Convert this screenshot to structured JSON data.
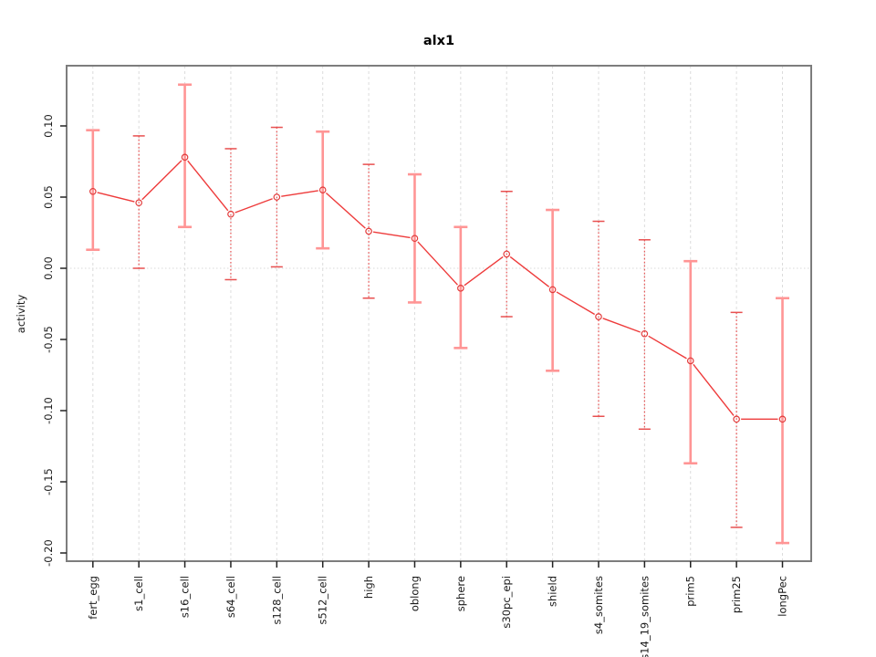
{
  "chart_data": {
    "type": "line",
    "title": "alx1",
    "xlabel": "",
    "ylabel": "activity",
    "legend": "none",
    "marker": "open-circle",
    "categories": [
      "fert_egg",
      "s1_cell",
      "s16_cell",
      "s64_cell",
      "s128_cell",
      "s512_cell",
      "high",
      "oblong",
      "sphere",
      "s30pc_epi",
      "shield",
      "s4_somites",
      "s14_19_somites",
      "prim5",
      "prim25",
      "longPec"
    ],
    "series": [
      {
        "name": "alx1 activity",
        "values": [
          0.054,
          0.046,
          0.078,
          0.038,
          0.05,
          0.055,
          0.026,
          0.021,
          -0.014,
          0.01,
          -0.015,
          -0.034,
          -0.046,
          -0.065,
          -0.106,
          -0.106
        ],
        "err_high": [
          0.097,
          0.093,
          0.129,
          0.084,
          0.099,
          0.096,
          0.073,
          0.066,
          0.029,
          0.054,
          0.041,
          0.033,
          0.02,
          0.005,
          -0.031,
          -0.021
        ],
        "err_low": [
          0.013,
          0.0,
          0.029,
          -0.008,
          0.001,
          0.014,
          -0.021,
          -0.024,
          -0.056,
          -0.034,
          -0.072,
          -0.104,
          -0.113,
          -0.137,
          -0.182,
          -0.193
        ]
      }
    ],
    "y_ticks": [
      0.1,
      0.05,
      0.0,
      -0.05,
      -0.1,
      -0.15,
      -0.2
    ],
    "ylim": [
      -0.207,
      0.143
    ],
    "grid": {
      "vertical_gridlines": "dashed light gray at each category",
      "horizontal_gridlines": "dotted light gray at zero only"
    },
    "errorbar_styles": [
      "light",
      "dotted",
      "light",
      "dotted",
      "dotted",
      "light",
      "dotted",
      "light",
      "light",
      "dotted",
      "light",
      "dotted",
      "dotted",
      "light",
      "dotted",
      "light"
    ],
    "colors": {
      "series": "#ee3b3b",
      "point": "#e23b3b",
      "errorbar_light": "#ff9595",
      "errorbar_dotted": "#e85050",
      "gridline": "#dcdcdc",
      "zero_line": "#d9d9d9",
      "frame": "#7d7d7d",
      "tick": "#222222",
      "text": "#1a1a1a",
      "title_text": "#000000"
    }
  }
}
